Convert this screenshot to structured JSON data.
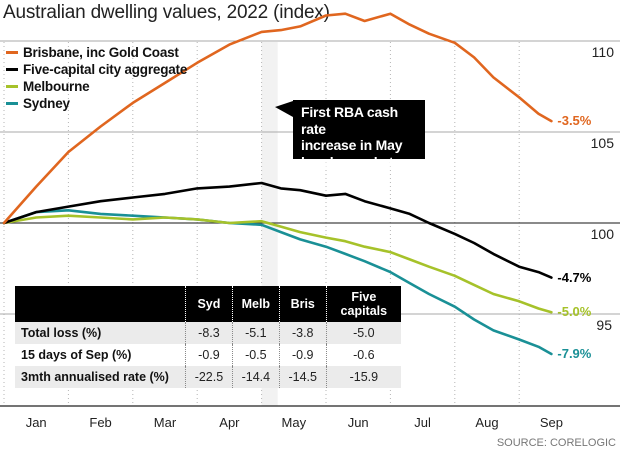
{
  "chart_data": {
    "type": "line",
    "title": "Australian dwelling values, 2022 (index)",
    "xlabel": "",
    "ylabel": "",
    "x_ticks": [
      "Jan",
      "Feb",
      "Mar",
      "Apr",
      "May",
      "Jun",
      "Jul",
      "Aug",
      "Sep"
    ],
    "xlim_months": [
      0,
      8.6
    ],
    "ylim": [
      93,
      111
    ],
    "y_ticks": [
      110,
      105,
      100,
      95
    ],
    "y_tick_labels": [
      "110",
      "105",
      "100",
      "95"
    ],
    "grid": true,
    "legend_position": "top-left",
    "highlight_band_months": [
      4.0,
      4.25
    ],
    "annotation": {
      "text_lines": [
        "First RBA cash rate",
        "increase in May",
        "breaks market"
      ]
    },
    "series": [
      {
        "name": "Brisbane, inc Gold Coast",
        "key": "brisbane",
        "color": "#e0661f",
        "end_label": "-3.5%",
        "x": [
          0,
          0.5,
          1,
          1.5,
          2,
          2.5,
          3,
          3.5,
          4,
          4.3,
          4.6,
          5,
          5.3,
          5.6,
          6,
          6.3,
          6.6,
          7,
          7.3,
          7.6,
          8,
          8.3,
          8.5
        ],
        "values": [
          100,
          102.0,
          103.9,
          105.3,
          106.6,
          107.7,
          108.8,
          109.8,
          110.5,
          110.6,
          110.8,
          111.4,
          111.5,
          111.1,
          111.5,
          110.9,
          110.4,
          109.9,
          109.1,
          108.0,
          106.9,
          106.0,
          105.6
        ]
      },
      {
        "name": "Five-capital city aggregate",
        "key": "five_capitals",
        "color": "#000000",
        "end_label": "-4.7%",
        "x": [
          0,
          0.5,
          1,
          1.5,
          2,
          2.5,
          3,
          3.5,
          4,
          4.3,
          4.6,
          5,
          5.3,
          5.6,
          6,
          6.3,
          6.6,
          7,
          7.3,
          7.6,
          8,
          8.3,
          8.5
        ],
        "values": [
          100,
          100.6,
          100.9,
          101.2,
          101.4,
          101.6,
          101.9,
          102.0,
          102.2,
          101.9,
          101.8,
          101.5,
          101.6,
          101.2,
          100.8,
          100.5,
          100.0,
          99.4,
          98.9,
          98.3,
          97.6,
          97.3,
          97.0
        ]
      },
      {
        "name": "Melbourne",
        "key": "melbourne",
        "color": "#a6c22a",
        "end_label": "-5.0%",
        "x": [
          0,
          0.5,
          1,
          1.5,
          2,
          2.5,
          3,
          3.5,
          4,
          4.3,
          4.6,
          5,
          5.3,
          5.6,
          6,
          6.3,
          6.6,
          7,
          7.3,
          7.6,
          8,
          8.3,
          8.5
        ],
        "values": [
          100,
          100.3,
          100.4,
          100.3,
          100.2,
          100.3,
          100.2,
          100.0,
          100.1,
          99.8,
          99.5,
          99.2,
          99.0,
          98.7,
          98.4,
          98.0,
          97.6,
          97.1,
          96.6,
          96.1,
          95.7,
          95.3,
          95.1
        ]
      },
      {
        "name": "Sydney",
        "key": "sydney",
        "color": "#1a9096",
        "end_label": "-7.9%",
        "x": [
          0,
          0.5,
          1,
          1.5,
          2,
          2.5,
          3,
          3.5,
          4,
          4.3,
          4.6,
          5,
          5.3,
          5.6,
          6,
          6.3,
          6.6,
          7,
          7.3,
          7.6,
          8,
          8.3,
          8.5
        ],
        "values": [
          100,
          100.6,
          100.7,
          100.5,
          100.4,
          100.3,
          100.2,
          100.0,
          99.9,
          99.5,
          99.1,
          98.7,
          98.3,
          97.9,
          97.3,
          96.7,
          96.1,
          95.4,
          94.7,
          94.1,
          93.6,
          93.2,
          92.8
        ]
      }
    ]
  },
  "table": {
    "columns": [
      "",
      "Syd",
      "Melb",
      "Bris",
      "Five capitals"
    ],
    "column_lines": [
      [
        "Syd"
      ],
      [
        "Melb"
      ],
      [
        "Bris"
      ],
      [
        "Five",
        "capitals"
      ]
    ],
    "rows": [
      {
        "label": "Total loss (%)",
        "values": [
          "-8.3",
          "-5.1",
          "-3.8",
          "-5.0"
        ]
      },
      {
        "label": "15 days of Sep (%)",
        "values": [
          "-0.9",
          "-0.5",
          "-0.9",
          "-0.6"
        ]
      },
      {
        "label": "3mth annualised rate (%)",
        "values": [
          "-22.5",
          "-14.4",
          "-14.5",
          "-15.9"
        ]
      }
    ]
  },
  "source": "SOURCE: CORELOGIC"
}
